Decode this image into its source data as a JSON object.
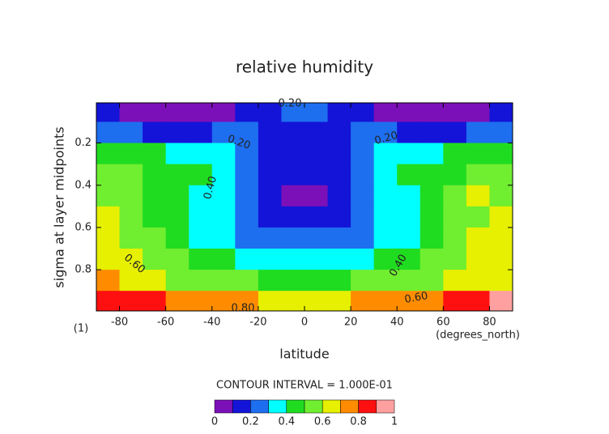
{
  "chart_data": {
    "type": "contour",
    "title": "relative humidity",
    "x_label": "latitude",
    "x_unit": "(degrees_north)",
    "y_label": "sigma at layer midpoints",
    "y_unit": "(1)",
    "note": "CONTOUR INTERVAL = 1.000E-01",
    "x": [
      -85,
      -75,
      -65,
      -55,
      -45,
      -35,
      -25,
      -15,
      -5,
      5,
      15,
      25,
      35,
      45,
      55,
      65,
      75,
      85
    ],
    "y": [
      0.05,
      0.15,
      0.25,
      0.35,
      0.45,
      0.55,
      0.65,
      0.75,
      0.85,
      0.95
    ],
    "z": [
      [
        0.12,
        0.08,
        0.06,
        0.06,
        0.06,
        0.06,
        0.12,
        0.18,
        0.28,
        0.28,
        0.18,
        0.12,
        0.06,
        0.06,
        0.06,
        0.06,
        0.08,
        0.12
      ],
      [
        0.25,
        0.2,
        0.18,
        0.18,
        0.19,
        0.22,
        0.2,
        0.15,
        0.15,
        0.15,
        0.15,
        0.2,
        0.22,
        0.19,
        0.18,
        0.18,
        0.2,
        0.25
      ],
      [
        0.45,
        0.45,
        0.42,
        0.38,
        0.35,
        0.3,
        0.22,
        0.15,
        0.15,
        0.15,
        0.15,
        0.22,
        0.3,
        0.35,
        0.38,
        0.42,
        0.45,
        0.45
      ],
      [
        0.52,
        0.5,
        0.48,
        0.45,
        0.4,
        0.33,
        0.25,
        0.15,
        0.14,
        0.14,
        0.15,
        0.25,
        0.33,
        0.4,
        0.45,
        0.48,
        0.52,
        0.55
      ],
      [
        0.58,
        0.52,
        0.48,
        0.45,
        0.38,
        0.32,
        0.22,
        0.14,
        0.08,
        0.08,
        0.14,
        0.22,
        0.32,
        0.38,
        0.45,
        0.5,
        0.62,
        0.55
      ],
      [
        0.62,
        0.52,
        0.48,
        0.42,
        0.35,
        0.3,
        0.22,
        0.15,
        0.14,
        0.14,
        0.15,
        0.22,
        0.3,
        0.35,
        0.42,
        0.5,
        0.58,
        0.6
      ],
      [
        0.65,
        0.55,
        0.5,
        0.45,
        0.38,
        0.32,
        0.28,
        0.22,
        0.2,
        0.2,
        0.22,
        0.28,
        0.32,
        0.38,
        0.45,
        0.55,
        0.62,
        0.65
      ],
      [
        0.68,
        0.62,
        0.55,
        0.5,
        0.45,
        0.4,
        0.35,
        0.32,
        0.3,
        0.3,
        0.32,
        0.35,
        0.4,
        0.45,
        0.5,
        0.55,
        0.62,
        0.65
      ],
      [
        0.72,
        0.68,
        0.62,
        0.58,
        0.55,
        0.52,
        0.5,
        0.45,
        0.42,
        0.42,
        0.45,
        0.5,
        0.52,
        0.55,
        0.58,
        0.62,
        0.66,
        0.68
      ],
      [
        0.85,
        0.82,
        0.8,
        0.78,
        0.75,
        0.72,
        0.7,
        0.65,
        0.65,
        0.65,
        0.65,
        0.7,
        0.72,
        0.75,
        0.78,
        0.8,
        0.85,
        0.9
      ]
    ],
    "levels": [
      0,
      0.1,
      0.2,
      0.3,
      0.4,
      0.5,
      0.6,
      0.7,
      0.8,
      0.9,
      1
    ],
    "colors": [
      "#7c10b8",
      "#1414d8",
      "#1e6ef0",
      "#00ffff",
      "#20dc20",
      "#70ee30",
      "#e6f000",
      "#ff8c00",
      "#ff1010",
      "#ffa0a0"
    ],
    "contour_labels": [
      "0.20",
      "0.20",
      "0.20",
      "0.40",
      "0.60",
      "0.40",
      "0.60",
      "0.80"
    ],
    "xlim": [
      -90,
      90
    ],
    "ylim": [
      0.01,
      0.995
    ],
    "xticks": [
      -80,
      -60,
      -40,
      -20,
      0,
      20,
      40,
      60,
      80
    ],
    "yticks": [
      0.2,
      0.4,
      0.6,
      0.8
    ],
    "colorbar_ticks": [
      0,
      0.2,
      0.4,
      0.6,
      0.8,
      1
    ]
  }
}
